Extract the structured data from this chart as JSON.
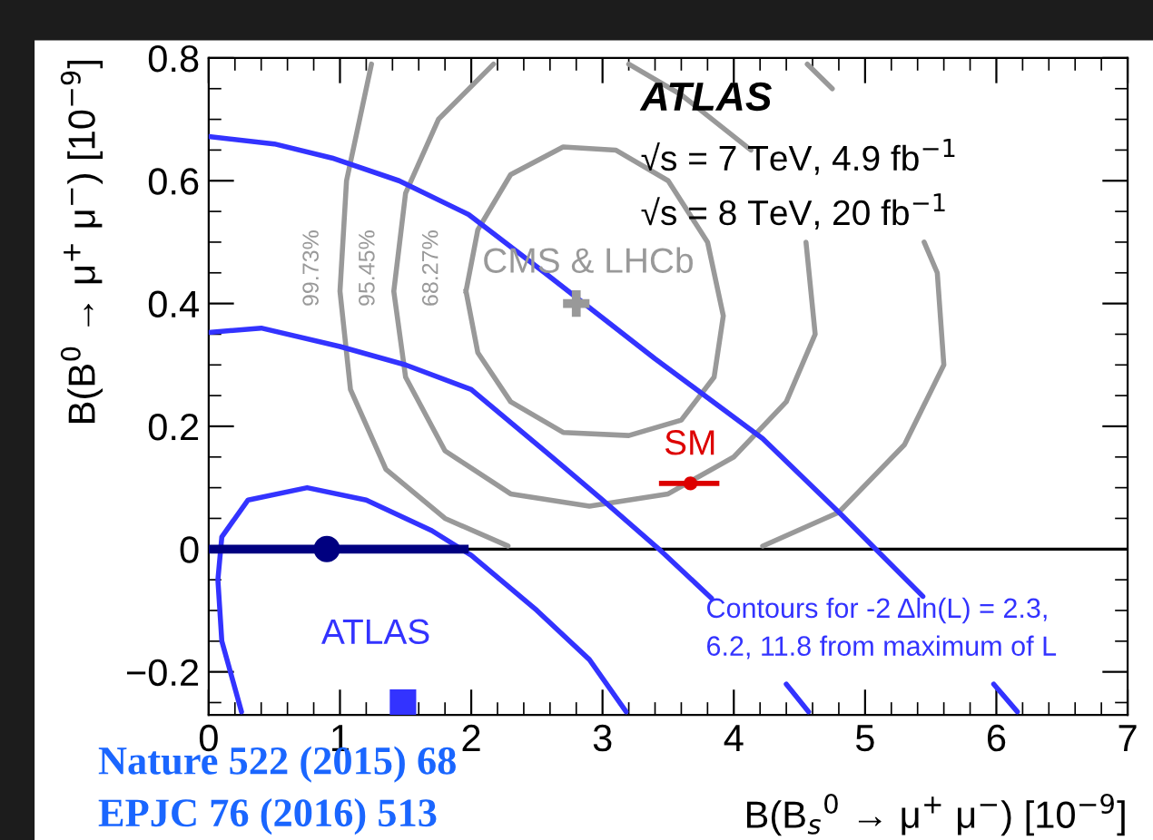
{
  "chart_data": {
    "type": "line",
    "xlabel": "B(B$_{s}$$^{0}$ → μ$^{+}$ μ$^{−}$) [10$^{−9}$]",
    "ylabel": "B(B$^{0}$ → μ$^{+}$ μ$^{−}$) [10$^{−9}$]",
    "xlim": [
      0,
      7
    ],
    "ylim": [
      -0.27,
      0.8
    ],
    "xticks": [
      0,
      1,
      2,
      3,
      4,
      5,
      6,
      7
    ],
    "yticks": [
      {
        "value": -0.2,
        "label": "−0.2"
      },
      0,
      0.2,
      0.4,
      0.6,
      0.8
    ],
    "grid": false,
    "legend": false,
    "series": [
      {
        "color": "#999999",
        "x": [
          2.17,
          1.75,
          1.5,
          1.41,
          1.5,
          1.8,
          2.3,
          2.9,
          3.5,
          4.0,
          4.4,
          4.62,
          4.55,
          4.3,
          4.13,
          3.6,
          3.2
        ],
        "values": [
          0.79,
          0.7,
          0.58,
          0.42,
          0.28,
          0.16,
          0.09,
          0.07,
          0.09,
          0.15,
          0.24,
          0.35,
          0.5,
          null,
          0.65,
          0.74,
          0.79
        ]
      },
      {
        "color": "#999999",
        "x": [
          1.24,
          1.05,
          1.0,
          1.08,
          1.35,
          1.8,
          2.28
        ],
        "values": [
          0.79,
          0.6,
          0.42,
          0.26,
          0.13,
          0.05,
          0.005
        ]
      },
      {
        "color": "#999999",
        "x": [
          4.22,
          4.8,
          5.3,
          5.6,
          5.55,
          5.45,
          5.0,
          4.75,
          4.56
        ],
        "values": [
          0.005,
          0.06,
          0.17,
          0.3,
          0.45,
          0.5,
          null,
          0.75,
          0.79
        ]
      },
      {
        "color": "#3333ff",
        "x": [
          0.25,
          0.1,
          0.07,
          0.1,
          0.3,
          0.75,
          1.2,
          1.7,
          2.0,
          2.5,
          2.9,
          3.18
        ],
        "values": [
          -0.265,
          -0.15,
          -0.05,
          0.02,
          0.08,
          0.1,
          0.08,
          0.03,
          -0.01,
          -0.1,
          -0.18,
          -0.265
        ]
      },
      {
        "color": "#3333ff",
        "x": [
          0.0,
          0.4,
          1.0,
          1.5,
          2.0,
          2.56,
          3.0,
          3.43,
          3.83,
          4.1,
          4.4,
          4.57
        ],
        "values": [
          0.353,
          0.36,
          0.33,
          0.3,
          0.26,
          0.16,
          0.08,
          0.0,
          -0.08,
          null,
          -0.22,
          -0.265
        ]
      },
      {
        "color": "#3333ff",
        "x": [
          0.0,
          0.5,
          0.94,
          1.45,
          1.98,
          2.56,
          3.4,
          4.22,
          4.82,
          5.08,
          5.44,
          5.7,
          5.98,
          6.16
        ],
        "values": [
          0.672,
          0.66,
          0.637,
          0.6,
          0.545,
          0.45,
          0.31,
          0.18,
          0.056,
          0.0,
          -0.077,
          null,
          -0.22,
          -0.265
        ]
      },
      {
        "type": "scatter",
        "color": "#999999",
        "marker": "cross",
        "x": [
          2.8
        ],
        "values": [
          0.4
        ]
      },
      {
        "type": "scatter",
        "color": "#000080",
        "marker": "circle",
        "x": [
          0.9
        ],
        "values": [
          0.0
        ],
        "xerrors": [
          [
            0.0,
            1.98
          ]
        ]
      },
      {
        "type": "scatter",
        "color": "#dd0000",
        "marker": "circle",
        "x": [
          3.67
        ],
        "values": [
          0.107
        ],
        "xerrors": [
          [
            3.43,
            3.89
          ]
        ]
      },
      {
        "type": "scatter",
        "color": "#3333ff",
        "marker": "square",
        "x": [
          1.48
        ],
        "values": [
          -0.25
        ]
      }
    ],
    "ref_lines": [
      {
        "axis": "y",
        "value": 0,
        "color": "#000000"
      }
    ],
    "annotations": [
      "99.73%",
      "95.45%",
      "68.27%",
      "CMS & LHCb",
      "SM",
      "ATLAS",
      "√s = 7 TeV, 4.9 fb$^{−1}$",
      "√s = 8 TeV, 20 fb$^{−1}$",
      "ATLAS",
      "Contours for -2 Δln(L) = 2.3,\n6.2, 11.8 from maximum of L",
      "Nature 522 (2015) 68",
      "EPJC 76 (2016) 513"
    ]
  }
}
